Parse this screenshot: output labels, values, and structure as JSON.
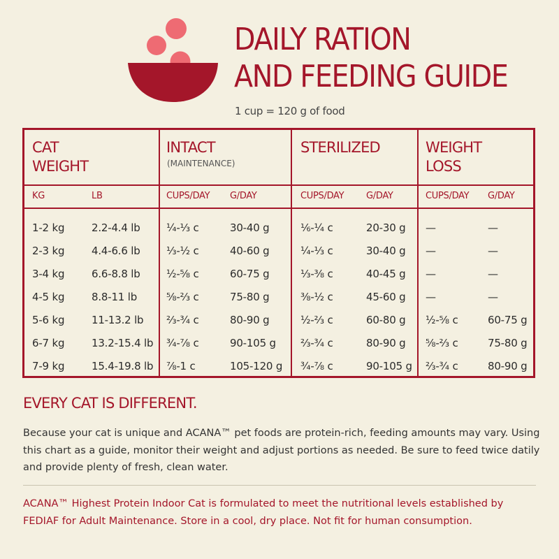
{
  "header": {
    "title_line1": "DAILY RATION",
    "title_line2": "AND FEEDING GUIDE",
    "subtitle": "1 cup = 120 g of food"
  },
  "table": {
    "groups": {
      "cat_weight": {
        "line1": "CAT",
        "line2": "WEIGHT"
      },
      "intact": {
        "title": "INTACT",
        "note": "(MAINTENANCE)"
      },
      "sterilized": {
        "title": "STERILIZED"
      },
      "weight_loss": {
        "line1": "WEIGHT",
        "line2": "LOSS"
      }
    },
    "units": [
      "KG",
      "LB",
      "CUPS/DAY",
      "G/DAY",
      "CUPS/DAY",
      "G/DAY",
      "CUPS/DAY",
      "G/DAY"
    ],
    "rows": [
      [
        "1-2 kg",
        "2.2-4.4 lb",
        "¼-⅓ c",
        "30-40 g",
        "⅙-¼ c",
        "20-30 g",
        "—",
        "—"
      ],
      [
        "2-3 kg",
        "4.4-6.6 lb",
        "⅓-½ c",
        "40-60 g",
        "¼-⅓ c",
        "30-40 g",
        "—",
        "—"
      ],
      [
        "3-4 kg",
        "6.6-8.8 lb",
        "½-⅝ c",
        "60-75 g",
        "⅓-⅜ c",
        "40-45 g",
        "—",
        "—"
      ],
      [
        "4-5 kg",
        "8.8-11 lb",
        "⅝-⅔ c",
        "75-80 g",
        "⅜-½ c",
        "45-60 g",
        "—",
        "—"
      ],
      [
        "5-6 kg",
        "11-13.2 lb",
        "⅔-¾ c",
        "80-90 g",
        "½-⅔ c",
        "60-80 g",
        "½-⅝ c",
        "60-75 g"
      ],
      [
        "6-7 kg",
        "13.2-15.4 lb",
        "¾-⅞ c",
        "90-105 g",
        "⅔-¾ c",
        "80-90 g",
        "⅝-⅔ c",
        "75-80 g"
      ],
      [
        "7-9 kg",
        "15.4-19.8 lb",
        "⅞-1 c",
        "105-120 g",
        "¾-⅞ c",
        "90-105 g",
        "⅔-¾ c",
        "80-90 g"
      ]
    ]
  },
  "info": {
    "heading": "EVERY CAT IS DIFFERENT.",
    "body": "Because your cat is unique and ACANA™ pet foods are protein-rich, feeding amounts may vary. Using this chart as a guide, monitor their weight and adjust portions as needed. Be sure to feed twice datily and provide plenty of fresh, clean water.",
    "footer": "ACANA™ Highest Protein Indoor Cat is formulated to meet the nutritional levels established by FEDIAF for Adult Maintenance. Store in a cool, dry place. Not fit for human consumption."
  },
  "colors": {
    "accent": "#a4162a",
    "accent_light": "#ee6b73",
    "background": "#f4f0e1"
  },
  "icons": {
    "logo": "food-bowl-icon"
  }
}
